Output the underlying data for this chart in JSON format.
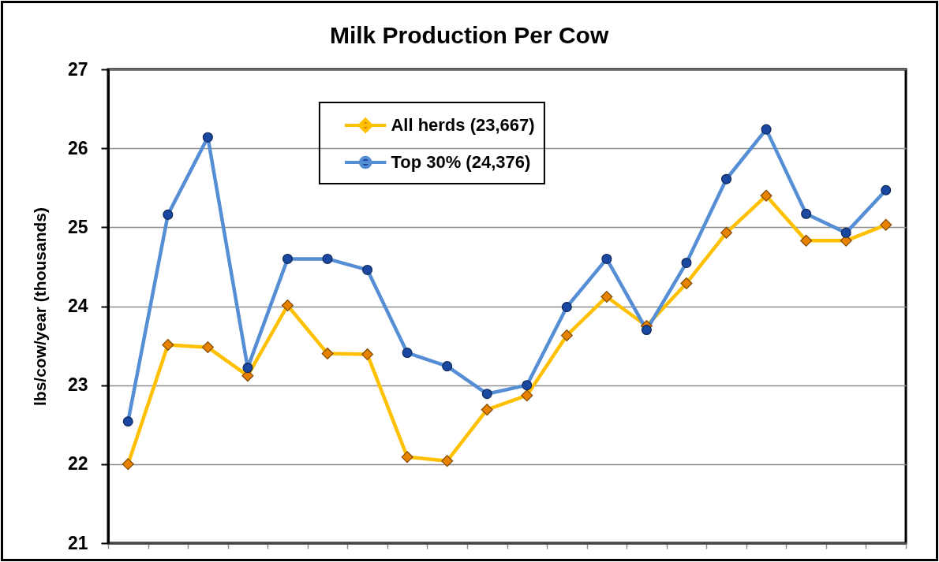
{
  "chart_data": {
    "type": "line",
    "title": "Milk Production Per Cow",
    "ylabel": "lbs/cow/year (thousands)",
    "categories": [
      null,
      null,
      null,
      null,
      null,
      null,
      null,
      null,
      null,
      null,
      null,
      null,
      null,
      null,
      null,
      null,
      null,
      null,
      null,
      null
    ],
    "series": [
      {
        "name": "All herds (23,667)",
        "color": "#ffc000",
        "marker": "diamond",
        "values": [
          22.0,
          23.51,
          23.48,
          23.12,
          24.01,
          23.4,
          23.39,
          22.09,
          22.04,
          22.69,
          22.87,
          23.63,
          24.12,
          23.75,
          24.29,
          24.93,
          25.4,
          24.83,
          24.83,
          25.03
        ]
      },
      {
        "name": "Top 30% (24,376)",
        "color": "#558ed5",
        "marker": "circle",
        "values": [
          22.54,
          25.16,
          26.14,
          23.22,
          24.6,
          24.6,
          24.46,
          23.41,
          23.24,
          22.89,
          23.0,
          23.99,
          24.6,
          23.7,
          24.55,
          25.61,
          26.24,
          25.17,
          24.93,
          25.47
        ]
      }
    ],
    "ylim": [
      21,
      27
    ],
    "yticks": [
      21,
      22,
      23,
      24,
      25,
      26,
      27
    ],
    "grid": "y",
    "legend": "top",
    "tick_labels": "y"
  }
}
